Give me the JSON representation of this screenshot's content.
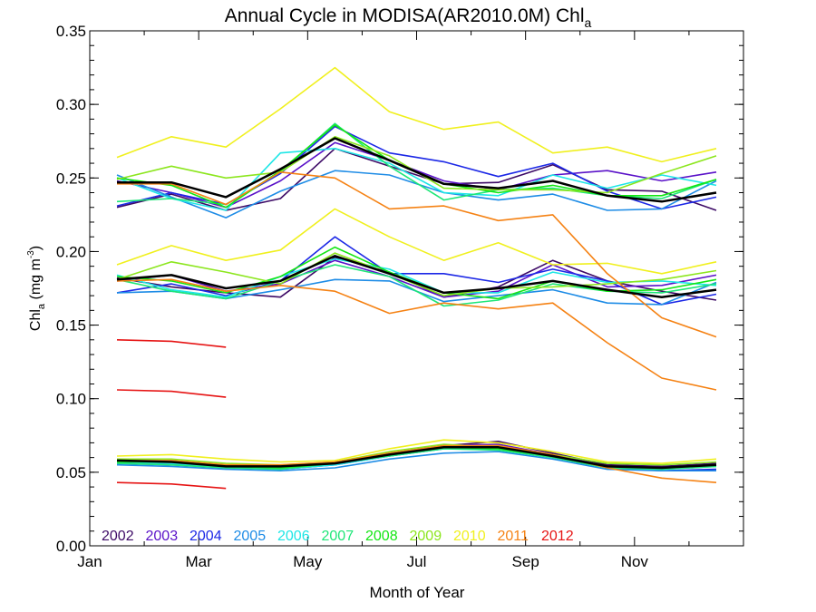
{
  "chart_data": {
    "type": "line",
    "title": "Annual Cycle in MODISA(AR2010.0M) Chl",
    "title_subscript": "a",
    "xlabel": "Month of Year",
    "ylabel": "Chl",
    "ylabel_subscript": "a",
    "ylabel_units": "(mg m",
    "ylabel_units_sup": "-3",
    "ylabel_units_close": ")",
    "xlim": [
      1,
      13
    ],
    "ylim": [
      0,
      0.35
    ],
    "xticks": [
      {
        "value": 1,
        "label": "Jan"
      },
      {
        "value": 3,
        "label": "Mar"
      },
      {
        "value": 5,
        "label": "May"
      },
      {
        "value": 7,
        "label": "Jul"
      },
      {
        "value": 9,
        "label": "Sep"
      },
      {
        "value": 11,
        "label": "Nov"
      }
    ],
    "yticks": [
      {
        "value": 0.0,
        "label": "0.00"
      },
      {
        "value": 0.05,
        "label": "0.05"
      },
      {
        "value": 0.1,
        "label": "0.10"
      },
      {
        "value": 0.15,
        "label": "0.15"
      },
      {
        "value": 0.2,
        "label": "0.20"
      },
      {
        "value": 0.25,
        "label": "0.25"
      },
      {
        "value": 0.3,
        "label": "0.30"
      },
      {
        "value": 0.35,
        "label": "0.35"
      }
    ],
    "x": [
      1.5,
      2.5,
      3.5,
      4.5,
      5.5,
      6.5,
      7.5,
      8.5,
      9.5,
      10.5,
      11.5,
      12.5
    ],
    "legend_position": "bottom-left",
    "series": [
      {
        "name": "2002",
        "color": "#3d0a66",
        "groups": [
          [
            0.23,
            0.239,
            0.228,
            0.236,
            0.27,
            0.258,
            0.246,
            0.247,
            0.259,
            0.242,
            0.241,
            0.228
          ],
          [
            0.182,
            0.176,
            0.172,
            0.169,
            0.196,
            0.186,
            0.169,
            0.176,
            0.194,
            0.18,
            0.173,
            0.167
          ],
          [
            0.058,
            0.057,
            0.054,
            0.054,
            0.056,
            0.062,
            0.068,
            0.071,
            0.063,
            0.055,
            0.054,
            0.056
          ]
        ]
      },
      {
        "name": "2003",
        "color": "#5a12c8",
        "groups": [
          [
            0.248,
            0.24,
            0.23,
            0.248,
            0.274,
            0.262,
            0.248,
            0.242,
            0.252,
            0.255,
            0.248,
            0.254
          ],
          [
            0.18,
            0.184,
            0.173,
            0.178,
            0.194,
            0.183,
            0.169,
            0.173,
            0.191,
            0.176,
            0.177,
            0.184
          ],
          [
            0.058,
            0.057,
            0.053,
            0.053,
            0.057,
            0.063,
            0.068,
            0.069,
            0.062,
            0.054,
            0.053,
            0.055
          ]
        ]
      },
      {
        "name": "2004",
        "color": "#1c28e6",
        "groups": [
          [
            0.231,
            0.24,
            0.232,
            0.253,
            0.285,
            0.267,
            0.261,
            0.251,
            0.26,
            0.241,
            0.229,
            0.237
          ],
          [
            0.172,
            0.178,
            0.17,
            0.18,
            0.21,
            0.185,
            0.185,
            0.179,
            0.188,
            0.18,
            0.164,
            0.171
          ],
          [
            0.056,
            0.055,
            0.053,
            0.052,
            0.055,
            0.061,
            0.066,
            0.068,
            0.061,
            0.053,
            0.051,
            0.052
          ]
        ]
      },
      {
        "name": "2005",
        "color": "#1e8ce6",
        "groups": [
          [
            0.252,
            0.237,
            0.223,
            0.241,
            0.255,
            0.252,
            0.24,
            0.235,
            0.239,
            0.228,
            0.229,
            0.248
          ],
          [
            0.172,
            0.173,
            0.168,
            0.174,
            0.181,
            0.18,
            0.166,
            0.17,
            0.174,
            0.165,
            0.164,
            0.179
          ],
          [
            0.055,
            0.054,
            0.052,
            0.051,
            0.053,
            0.059,
            0.063,
            0.064,
            0.059,
            0.052,
            0.051,
            0.051
          ]
        ]
      },
      {
        "name": "2006",
        "color": "#1ee6e6",
        "groups": [
          [
            0.25,
            0.236,
            0.228,
            0.267,
            0.27,
            0.26,
            0.24,
            0.238,
            0.252,
            0.243,
            0.252,
            0.245
          ],
          [
            0.184,
            0.174,
            0.169,
            0.183,
            0.195,
            0.188,
            0.172,
            0.172,
            0.186,
            0.179,
            0.18,
            0.177
          ],
          [
            0.057,
            0.056,
            0.053,
            0.052,
            0.055,
            0.061,
            0.066,
            0.066,
            0.06,
            0.053,
            0.052,
            0.054
          ]
        ]
      },
      {
        "name": "2007",
        "color": "#1ee678",
        "groups": [
          [
            0.234,
            0.236,
            0.232,
            0.254,
            0.287,
            0.258,
            0.235,
            0.242,
            0.243,
            0.238,
            0.236,
            0.249
          ],
          [
            0.181,
            0.173,
            0.168,
            0.18,
            0.191,
            0.183,
            0.163,
            0.167,
            0.178,
            0.173,
            0.172,
            0.178
          ],
          [
            0.056,
            0.055,
            0.053,
            0.052,
            0.056,
            0.061,
            0.066,
            0.065,
            0.06,
            0.053,
            0.052,
            0.054
          ]
        ]
      },
      {
        "name": "2008",
        "color": "#14e614",
        "groups": [
          [
            0.25,
            0.245,
            0.23,
            0.255,
            0.286,
            0.262,
            0.246,
            0.24,
            0.245,
            0.238,
            0.238,
            0.249
          ],
          [
            0.183,
            0.18,
            0.172,
            0.183,
            0.203,
            0.186,
            0.172,
            0.168,
            0.18,
            0.173,
            0.174,
            0.181
          ],
          [
            0.057,
            0.057,
            0.054,
            0.053,
            0.056,
            0.062,
            0.067,
            0.066,
            0.061,
            0.054,
            0.053,
            0.055
          ]
        ]
      },
      {
        "name": "2009",
        "color": "#8ce61e",
        "groups": [
          [
            0.249,
            0.258,
            0.25,
            0.254,
            0.278,
            0.265,
            0.243,
            0.242,
            0.242,
            0.24,
            0.253,
            0.265
          ],
          [
            0.181,
            0.193,
            0.186,
            0.178,
            0.199,
            0.185,
            0.17,
            0.175,
            0.176,
            0.178,
            0.181,
            0.187
          ],
          [
            0.059,
            0.059,
            0.056,
            0.055,
            0.057,
            0.064,
            0.069,
            0.067,
            0.062,
            0.056,
            0.055,
            0.057
          ]
        ]
      },
      {
        "name": "2010",
        "color": "#f0f01e",
        "groups": [
          [
            0.264,
            0.278,
            0.271,
            0.297,
            0.325,
            0.295,
            0.283,
            0.288,
            0.267,
            0.271,
            0.261,
            0.27
          ],
          [
            0.191,
            0.204,
            0.194,
            0.201,
            0.229,
            0.21,
            0.194,
            0.206,
            0.191,
            0.192,
            0.185,
            0.193
          ],
          [
            0.061,
            0.062,
            0.059,
            0.057,
            0.058,
            0.066,
            0.072,
            0.07,
            0.064,
            0.057,
            0.056,
            0.059
          ]
        ]
      },
      {
        "name": "2011",
        "color": "#f58214",
        "groups": [
          [
            0.246,
            0.246,
            0.232,
            0.254,
            0.25,
            0.229,
            0.231,
            0.221,
            0.225,
            0.185,
            0.155,
            0.142
          ],
          [
            0.18,
            0.181,
            0.173,
            0.177,
            0.173,
            0.158,
            0.165,
            0.161,
            0.165,
            0.138,
            0.114,
            0.106
          ],
          [
            0.058,
            0.058,
            0.055,
            0.055,
            0.057,
            0.063,
            0.068,
            0.068,
            0.062,
            0.053,
            0.046,
            0.043
          ]
        ]
      },
      {
        "name": "2012",
        "color": "#e61414",
        "groups": [
          [
            0.14,
            0.139,
            0.135
          ],
          [
            0.106,
            0.105,
            0.101
          ],
          [
            0.043,
            0.042,
            0.039
          ]
        ]
      },
      {
        "name": "",
        "color": "#000000",
        "width": 2.5,
        "groups": [
          [
            0.247,
            0.247,
            0.237,
            0.256,
            0.277,
            0.262,
            0.246,
            0.243,
            0.248,
            0.238,
            0.234,
            0.24
          ],
          [
            0.181,
            0.184,
            0.175,
            0.18,
            0.197,
            0.185,
            0.172,
            0.175,
            0.18,
            0.174,
            0.169,
            0.174
          ],
          [
            0.058,
            0.057,
            0.054,
            0.054,
            0.056,
            0.062,
            0.067,
            0.067,
            0.061,
            0.054,
            0.053,
            0.055
          ]
        ]
      }
    ]
  }
}
